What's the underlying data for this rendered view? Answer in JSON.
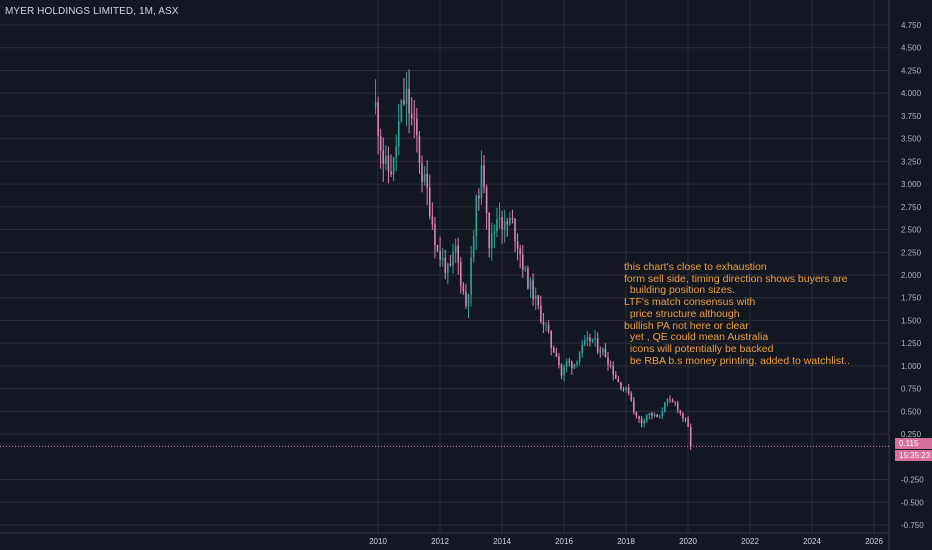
{
  "chart_data": {
    "type": "candlestick",
    "title": "MYER HOLDINGS LIMITED, 1M, ASX",
    "interval": "1M",
    "exchange": "ASX",
    "xlim": [
      2008.0,
      2027.0
    ],
    "ylim": [
      -0.85,
      4.78
    ],
    "y_ticks": [
      "4.750",
      "4.500",
      "4.250",
      "4.000",
      "3.750",
      "3.500",
      "3.250",
      "3.000",
      "2.750",
      "2.500",
      "2.250",
      "2.000",
      "1.750",
      "1.500",
      "1.250",
      "1.000",
      "0.750",
      "0.500",
      "0.250",
      "-0.250",
      "-0.500",
      "-0.750"
    ],
    "y_tick_values": [
      4.75,
      4.5,
      4.25,
      4.0,
      3.75,
      3.5,
      3.25,
      3.0,
      2.75,
      2.5,
      2.25,
      2.0,
      1.75,
      1.5,
      1.25,
      1.0,
      0.75,
      0.5,
      0.25,
      -0.25,
      -0.5,
      -0.75
    ],
    "x_ticks": [
      "2010",
      "2012",
      "2014",
      "2016",
      "2018",
      "2020",
      "2022",
      "2024",
      "2026"
    ],
    "x_tick_values": [
      2010,
      2012,
      2014,
      2016,
      2018,
      2020,
      2022,
      2024,
      2026
    ],
    "grid": true,
    "colors": {
      "background": "#131722",
      "grid": "#2a2e39",
      "up": "#26a69a",
      "down": "#e084b4",
      "annotation": "#f0a03c",
      "price_line": "#e084b4"
    },
    "current_price": "0.115",
    "current_price_value": 0.115,
    "countdown": "15:35:23",
    "annotation": [
      "this chart's close to exhaustion",
      "form sell side, timing direction shows buyers are",
      "  building position sizes.",
      "LTF's match consensus with",
      "  price structure although",
      "bullish PA not here or clear",
      "  yet , QE could mean Australia",
      "  icons will potentially be backed",
      "  be RBA b.s money printing. added to watchlist.."
    ],
    "anchors": [
      [
        2009.92,
        3.85
      ],
      [
        2010.05,
        3.55
      ],
      [
        2010.2,
        3.2
      ],
      [
        2010.35,
        3.15
      ],
      [
        2010.5,
        3.2
      ],
      [
        2010.65,
        3.6
      ],
      [
        2010.8,
        3.9
      ],
      [
        2010.92,
        3.95
      ],
      [
        2011.08,
        3.7
      ],
      [
        2011.25,
        3.5
      ],
      [
        2011.42,
        3.1
      ],
      [
        2011.6,
        2.9
      ],
      [
        2011.75,
        2.6
      ],
      [
        2011.92,
        2.25
      ],
      [
        2012.1,
        2.15
      ],
      [
        2012.3,
        2.0
      ],
      [
        2012.5,
        2.3
      ],
      [
        2012.7,
        1.9
      ],
      [
        2012.85,
        1.65
      ],
      [
        2013.0,
        2.1
      ],
      [
        2013.15,
        2.7
      ],
      [
        2013.3,
        3.1
      ],
      [
        2013.45,
        3.05
      ],
      [
        2013.6,
        2.3
      ],
      [
        2013.75,
        2.5
      ],
      [
        2013.9,
        2.75
      ],
      [
        2014.05,
        2.5
      ],
      [
        2014.3,
        2.6
      ],
      [
        2014.55,
        2.3
      ],
      [
        2014.75,
        2.0
      ],
      [
        2015.0,
        1.8
      ],
      [
        2015.25,
        1.55
      ],
      [
        2015.45,
        1.4
      ],
      [
        2015.6,
        1.2
      ],
      [
        2015.75,
        1.15
      ],
      [
        2015.92,
        0.9
      ],
      [
        2016.1,
        1.05
      ],
      [
        2016.3,
        1.0
      ],
      [
        2016.5,
        1.15
      ],
      [
        2016.7,
        1.25
      ],
      [
        2016.9,
        1.3
      ],
      [
        2017.1,
        1.2
      ],
      [
        2017.3,
        1.15
      ],
      [
        2017.5,
        1.0
      ],
      [
        2017.7,
        0.85
      ],
      [
        2017.9,
        0.75
      ],
      [
        2018.1,
        0.72
      ],
      [
        2018.3,
        0.45
      ],
      [
        2018.5,
        0.38
      ],
      [
        2018.7,
        0.48
      ],
      [
        2018.9,
        0.45
      ],
      [
        2019.1,
        0.42
      ],
      [
        2019.25,
        0.62
      ],
      [
        2019.4,
        0.6
      ],
      [
        2019.6,
        0.58
      ],
      [
        2019.8,
        0.45
      ],
      [
        2019.95,
        0.38
      ],
      [
        2020.05,
        0.25
      ],
      [
        2020.12,
        0.115
      ]
    ]
  }
}
